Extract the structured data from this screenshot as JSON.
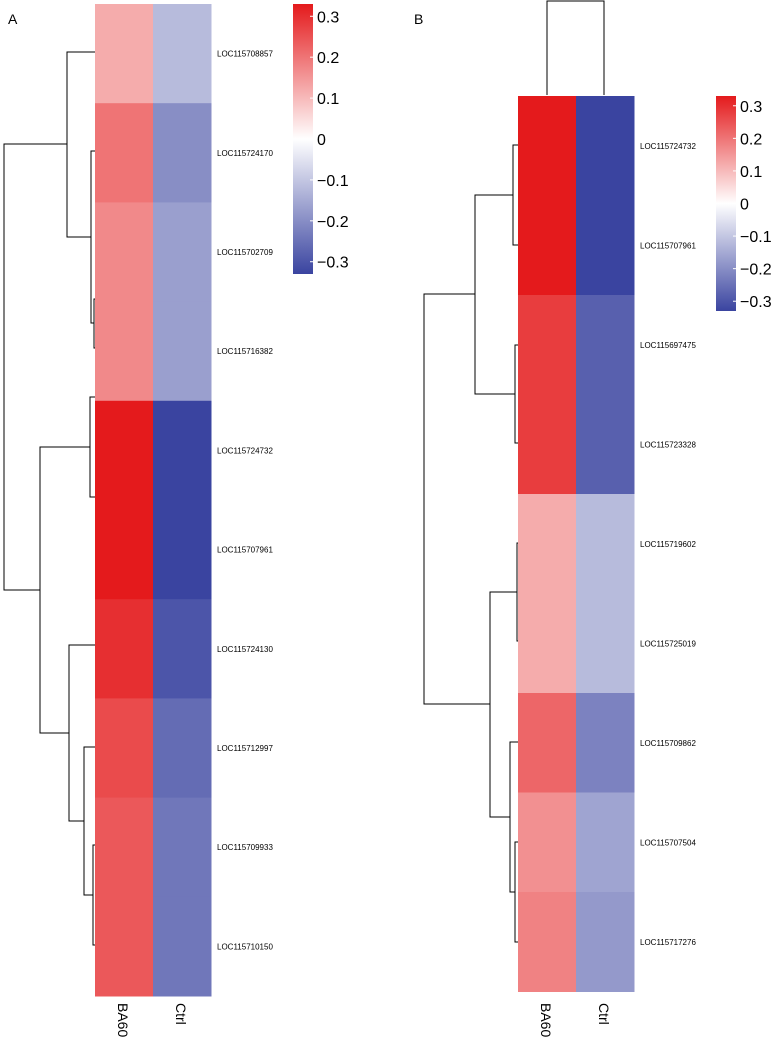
{
  "chart_data": [
    {
      "panel_label": "A",
      "type": "heatmap",
      "columns": [
        "BA60",
        "Ctrl"
      ],
      "rows": [
        {
          "gene": "LOC115708857",
          "values": [
            0.12,
            -0.12
          ]
        },
        {
          "gene": "LOC115724170",
          "values": [
            0.2,
            -0.2
          ]
        },
        {
          "gene": "LOC115702709",
          "values": [
            0.17,
            -0.17
          ]
        },
        {
          "gene": "LOC115716382",
          "values": [
            0.17,
            -0.17
          ]
        },
        {
          "gene": "LOC115724732",
          "values": [
            0.33,
            -0.33
          ]
        },
        {
          "gene": "LOC115707961",
          "values": [
            0.33,
            -0.33
          ]
        },
        {
          "gene": "LOC115724130",
          "values": [
            0.3,
            -0.3
          ]
        },
        {
          "gene": "LOC115712997",
          "values": [
            0.26,
            -0.26
          ]
        },
        {
          "gene": "LOC115709933",
          "values": [
            0.24,
            -0.24
          ]
        },
        {
          "gene": "LOC115710150",
          "values": [
            0.24,
            -0.24
          ]
        }
      ],
      "color_scale": {
        "range": [
          -0.33,
          0.33
        ],
        "low_color": "#3a44a0",
        "mid_color": "#ffffff",
        "high_color": "#e41a1c",
        "ticks": [
          0.3,
          0.2,
          0.1,
          0,
          -0.1,
          -0.2,
          -0.3
        ],
        "tick_labels": [
          "0.3",
          "0.2",
          "0.1",
          "0",
          "−0.1",
          "−0.2",
          "−0.3"
        ]
      },
      "row_dendrogram": "((LOC115708857,(LOC115724170,(LOC115702709,LOC115716382))),((LOC115724732,LOC115707961),(LOC115724130,(LOC115712997,(LOC115709933,LOC115710150)))))",
      "column_dendrogram": null
    },
    {
      "panel_label": "B",
      "type": "heatmap",
      "columns": [
        "BA60",
        "Ctrl"
      ],
      "rows": [
        {
          "gene": "LOC115724732",
          "values": [
            0.33,
            -0.33
          ]
        },
        {
          "gene": "LOC115707961",
          "values": [
            0.33,
            -0.33
          ]
        },
        {
          "gene": "LOC115697475",
          "values": [
            0.28,
            -0.28
          ]
        },
        {
          "gene": "LOC115723328",
          "values": [
            0.28,
            -0.28
          ]
        },
        {
          "gene": "LOC115719602",
          "values": [
            0.12,
            -0.12
          ]
        },
        {
          "gene": "LOC115725019",
          "values": [
            0.12,
            -0.12
          ]
        },
        {
          "gene": "LOC115709862",
          "values": [
            0.22,
            -0.22
          ]
        },
        {
          "gene": "LOC115707504",
          "values": [
            0.16,
            -0.16
          ]
        },
        {
          "gene": "LOC115717276",
          "values": [
            0.18,
            -0.18
          ]
        }
      ],
      "color_scale": {
        "range": [
          -0.33,
          0.33
        ],
        "low_color": "#3a44a0",
        "mid_color": "#ffffff",
        "high_color": "#e41a1c",
        "ticks": [
          0.3,
          0.2,
          0.1,
          0,
          -0.1,
          -0.2,
          -0.3
        ],
        "tick_labels": [
          "0.3",
          "0.2",
          "0.1",
          "0",
          "−0.1",
          "−0.2",
          "−0.3"
        ]
      },
      "row_dendrogram": "(((LOC115724732,LOC115707961),(LOC115697475,LOC115723328)),((LOC115719602,LOC115725019),(LOC115709862,(LOC115707504,LOC115717276))))",
      "column_dendrogram": "(BA60,Ctrl)"
    }
  ]
}
